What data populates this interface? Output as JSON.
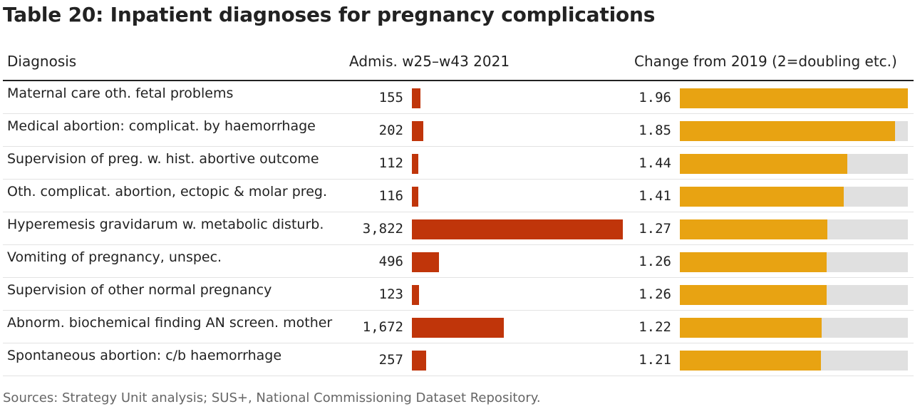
{
  "title": "Table 20: Inpatient diagnoses for pregnancy complications",
  "headers": {
    "diagnosis": "Diagnosis",
    "admissions": "Admis. w25–w43 2021",
    "change": "Change from 2019 (2=doubling etc.)"
  },
  "source": "Sources: Strategy Unit analysis; SUS+, National Commissioning Dataset Repository.",
  "colors": {
    "admissions_bar": "#c0350a",
    "change_bar": "#e8a312",
    "change_bar_background": "#e0e0e0",
    "row_divider": "#e3e3e3"
  },
  "chart_data": {
    "type": "table",
    "columns": [
      "Diagnosis",
      "Admis. w25–w43 2021",
      "Change from 2019 (2=doubling etc.)"
    ],
    "admissions_max": 3822,
    "change_range": [
      0,
      1.96
    ],
    "rows": [
      {
        "diagnosis": "Maternal care oth. fetal problems",
        "admissions": 155,
        "admissions_label": "155",
        "change": 1.96,
        "change_label": "1.96"
      },
      {
        "diagnosis": "Medical abortion: complicat. by haemorrhage",
        "admissions": 202,
        "admissions_label": "202",
        "change": 1.85,
        "change_label": "1.85"
      },
      {
        "diagnosis": "Supervision of preg. w. hist. abortive outcome",
        "admissions": 112,
        "admissions_label": "112",
        "change": 1.44,
        "change_label": "1.44"
      },
      {
        "diagnosis": "Oth. complicat. abortion, ectopic & molar preg.",
        "admissions": 116,
        "admissions_label": "116",
        "change": 1.41,
        "change_label": "1.41"
      },
      {
        "diagnosis": "Hyperemesis gravidarum w. metabolic disturb.",
        "admissions": 3822,
        "admissions_label": "3,822",
        "change": 1.27,
        "change_label": "1.27"
      },
      {
        "diagnosis": "Vomiting of pregnancy, unspec.",
        "admissions": 496,
        "admissions_label": "496",
        "change": 1.26,
        "change_label": "1.26"
      },
      {
        "diagnosis": "Supervision of other normal pregnancy",
        "admissions": 123,
        "admissions_label": "123",
        "change": 1.26,
        "change_label": "1.26"
      },
      {
        "diagnosis": "Abnorm. biochemical finding AN screen. mother",
        "admissions": 1672,
        "admissions_label": "1,672",
        "change": 1.22,
        "change_label": "1.22"
      },
      {
        "diagnosis": "Spontaneous abortion: c/b haemorrhage",
        "admissions": 257,
        "admissions_label": "257",
        "change": 1.21,
        "change_label": "1.21"
      }
    ]
  }
}
